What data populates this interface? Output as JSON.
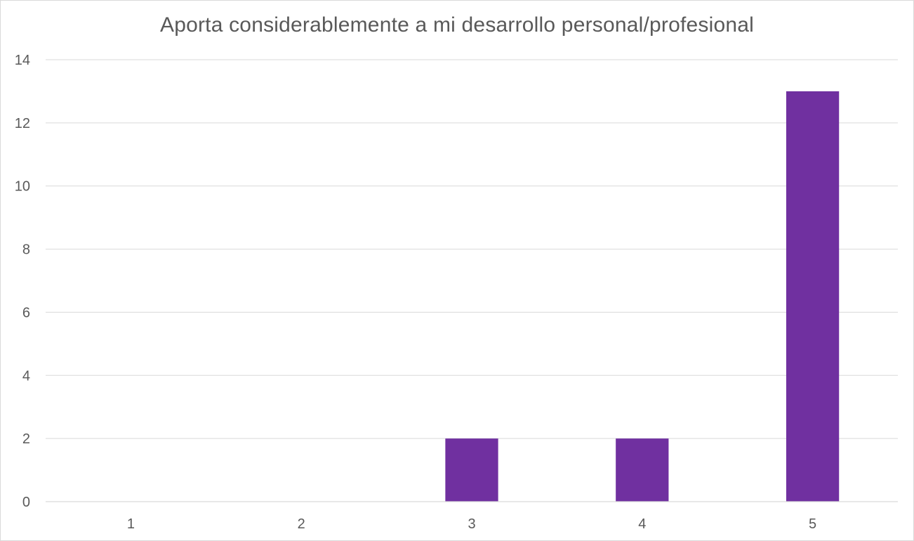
{
  "chart_data": {
    "type": "bar",
    "title": "Aporta considerablemente a mi desarrollo personal/profesional",
    "categories": [
      "1",
      "2",
      "3",
      "4",
      "5"
    ],
    "values": [
      0,
      0,
      2,
      2,
      13
    ],
    "ylim": [
      0,
      14
    ],
    "yticks": [
      0,
      2,
      4,
      6,
      8,
      10,
      12,
      14
    ],
    "bar_color": "#7030a0",
    "grid": true,
    "legend": "none"
  }
}
